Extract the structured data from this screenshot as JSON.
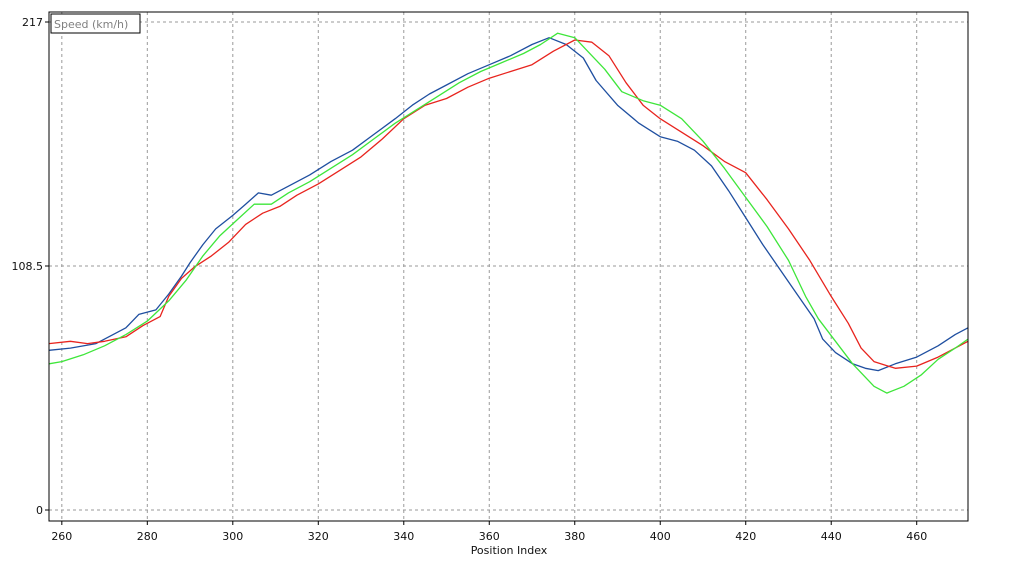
{
  "chart_data": {
    "type": "line",
    "xlabel": "Position Index",
    "legend_title": "Speed (km/h)",
    "xlim": [
      257,
      472
    ],
    "ylim": [
      0,
      217
    ],
    "x_ticks": [
      260,
      280,
      300,
      320,
      340,
      360,
      380,
      400,
      420,
      440,
      460
    ],
    "y_ticks": [
      0,
      108.5,
      217
    ],
    "y_tick_labels": [
      "0",
      "108.5",
      "217"
    ],
    "grid": true,
    "colors": {
      "blue": "#1f4fa0",
      "red": "#e8241e",
      "green": "#3ee63a",
      "grid": "#9a9a9a",
      "axis": "#000000"
    },
    "series": [
      {
        "color": "#1f4fa0",
        "points": [
          [
            257,
            71
          ],
          [
            262,
            72
          ],
          [
            268,
            74
          ],
          [
            272,
            78
          ],
          [
            275,
            81
          ],
          [
            278,
            87
          ],
          [
            282,
            89
          ],
          [
            285,
            96
          ],
          [
            288,
            104
          ],
          [
            290,
            110
          ],
          [
            293,
            118
          ],
          [
            296,
            125
          ],
          [
            300,
            131
          ],
          [
            303,
            136
          ],
          [
            306,
            141
          ],
          [
            309,
            140
          ],
          [
            313,
            144
          ],
          [
            318,
            149
          ],
          [
            323,
            155
          ],
          [
            328,
            160
          ],
          [
            333,
            167
          ],
          [
            338,
            174
          ],
          [
            342,
            180
          ],
          [
            346,
            185
          ],
          [
            350,
            189
          ],
          [
            355,
            194
          ],
          [
            360,
            198
          ],
          [
            365,
            202
          ],
          [
            370,
            207
          ],
          [
            374,
            210
          ],
          [
            378,
            207
          ],
          [
            382,
            201
          ],
          [
            385,
            191
          ],
          [
            390,
            180
          ],
          [
            395,
            172
          ],
          [
            400,
            166
          ],
          [
            404,
            164
          ],
          [
            408,
            160
          ],
          [
            412,
            153
          ],
          [
            416,
            142
          ],
          [
            420,
            130
          ],
          [
            424,
            118
          ],
          [
            428,
            107
          ],
          [
            432,
            96
          ],
          [
            436,
            85
          ],
          [
            438,
            76
          ],
          [
            441,
            70
          ],
          [
            445,
            65
          ],
          [
            448,
            63
          ],
          [
            451,
            62
          ],
          [
            455,
            65
          ],
          [
            460,
            68
          ],
          [
            465,
            73
          ],
          [
            469,
            78
          ],
          [
            472,
            81
          ]
        ]
      },
      {
        "color": "#e8241e",
        "points": [
          [
            257,
            74
          ],
          [
            262,
            75
          ],
          [
            266,
            74
          ],
          [
            270,
            75
          ],
          [
            275,
            77
          ],
          [
            279,
            82
          ],
          [
            283,
            86
          ],
          [
            285,
            95
          ],
          [
            288,
            103
          ],
          [
            291,
            108
          ],
          [
            295,
            113
          ],
          [
            299,
            119
          ],
          [
            303,
            127
          ],
          [
            307,
            132
          ],
          [
            311,
            135
          ],
          [
            315,
            140
          ],
          [
            320,
            145
          ],
          [
            325,
            151
          ],
          [
            330,
            157
          ],
          [
            335,
            165
          ],
          [
            340,
            174
          ],
          [
            345,
            180
          ],
          [
            350,
            183
          ],
          [
            355,
            188
          ],
          [
            360,
            192
          ],
          [
            365,
            195
          ],
          [
            370,
            198
          ],
          [
            375,
            204
          ],
          [
            380,
            209
          ],
          [
            384,
            208
          ],
          [
            388,
            202
          ],
          [
            392,
            190
          ],
          [
            396,
            180
          ],
          [
            400,
            174
          ],
          [
            405,
            168
          ],
          [
            410,
            162
          ],
          [
            415,
            155
          ],
          [
            420,
            150
          ],
          [
            425,
            138
          ],
          [
            430,
            125
          ],
          [
            435,
            111
          ],
          [
            440,
            95
          ],
          [
            444,
            83
          ],
          [
            447,
            72
          ],
          [
            450,
            66
          ],
          [
            455,
            63
          ],
          [
            460,
            64
          ],
          [
            465,
            68
          ],
          [
            469,
            72
          ],
          [
            472,
            75
          ]
        ]
      },
      {
        "color": "#3ee63a",
        "points": [
          [
            257,
            65
          ],
          [
            260,
            66
          ],
          [
            265,
            69
          ],
          [
            270,
            73
          ],
          [
            275,
            78
          ],
          [
            280,
            84
          ],
          [
            285,
            93
          ],
          [
            289,
            102
          ],
          [
            293,
            113
          ],
          [
            297,
            122
          ],
          [
            301,
            129
          ],
          [
            305,
            136
          ],
          [
            309,
            136
          ],
          [
            313,
            141
          ],
          [
            318,
            146
          ],
          [
            323,
            152
          ],
          [
            328,
            158
          ],
          [
            333,
            165
          ],
          [
            338,
            172
          ],
          [
            343,
            178
          ],
          [
            348,
            184
          ],
          [
            353,
            190
          ],
          [
            358,
            195
          ],
          [
            363,
            199
          ],
          [
            368,
            203
          ],
          [
            372,
            207
          ],
          [
            376,
            212
          ],
          [
            380,
            210
          ],
          [
            383,
            204
          ],
          [
            387,
            196
          ],
          [
            391,
            186
          ],
          [
            396,
            182
          ],
          [
            400,
            180
          ],
          [
            405,
            174
          ],
          [
            410,
            164
          ],
          [
            415,
            152
          ],
          [
            420,
            139
          ],
          [
            425,
            126
          ],
          [
            430,
            111
          ],
          [
            434,
            95
          ],
          [
            437,
            85
          ],
          [
            441,
            75
          ],
          [
            445,
            65
          ],
          [
            450,
            55
          ],
          [
            453,
            52
          ],
          [
            457,
            55
          ],
          [
            461,
            60
          ],
          [
            465,
            67
          ],
          [
            469,
            72
          ],
          [
            472,
            76
          ]
        ]
      }
    ]
  }
}
